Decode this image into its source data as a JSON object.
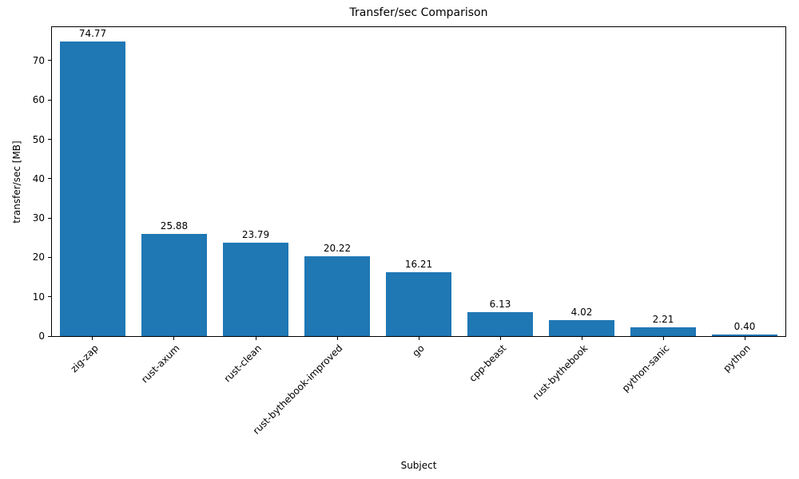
{
  "chart_data": {
    "type": "bar",
    "title": "Transfer/sec Comparison",
    "xlabel": "Subject",
    "ylabel": "transfer/sec [MB]",
    "categories": [
      "zig-zap",
      "rust-axum",
      "rust-clean",
      "rust-bythebook-improved",
      "go",
      "cpp-beast",
      "rust-bythebook",
      "python-sanic",
      "python"
    ],
    "values": [
      74.77,
      25.88,
      23.79,
      20.22,
      16.21,
      6.13,
      4.02,
      2.21,
      0.4
    ],
    "value_labels": [
      "74.77",
      "25.88",
      "23.79",
      "20.22",
      "16.21",
      "6.13",
      "4.02",
      "2.21",
      "0.40"
    ],
    "ylim": [
      0,
      78.5
    ],
    "yticks": [
      0,
      10,
      20,
      30,
      40,
      50,
      60,
      70
    ],
    "bar_color": "#1f77b4",
    "grid": false,
    "legend_position": "none",
    "x_tick_rotation_deg": 45
  }
}
